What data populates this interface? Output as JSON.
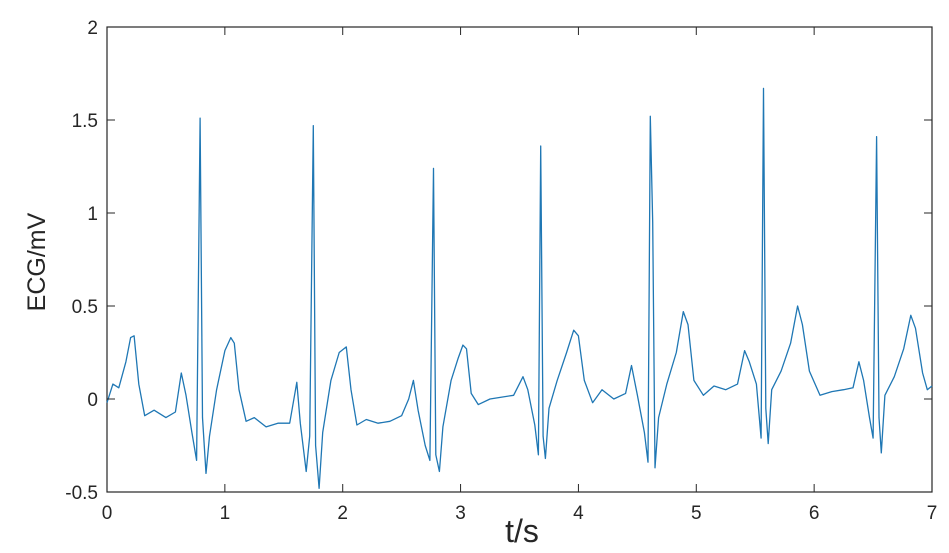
{
  "chart_data": {
    "type": "line",
    "title": "",
    "xlabel": "t/s",
    "ylabel": "ECG/mV",
    "xlim": [
      0,
      7
    ],
    "ylim": [
      -0.5,
      2
    ],
    "xticks": [
      0,
      1,
      2,
      3,
      4,
      5,
      6,
      7
    ],
    "yticks": [
      -0.5,
      0,
      0.5,
      1,
      1.5,
      2
    ],
    "xtick_labels": [
      "0",
      "1",
      "2",
      "3",
      "4",
      "5",
      "6",
      "7"
    ],
    "ytick_labels": [
      "-0.5",
      "0",
      "0.5",
      "1",
      "1.5",
      "2"
    ],
    "grid": false,
    "legend": "none",
    "colors": {
      "line": "#1f77b4",
      "axis": "#262626"
    },
    "beats": [
      {
        "r_time": 0.79,
        "r_peak": 1.51,
        "q_min": -0.33,
        "s_min": -0.4,
        "t_time": 1.08,
        "t_peak": 0.33,
        "p_time": 0.63,
        "p_peak": 0.14
      },
      {
        "r_time": 1.75,
        "r_peak": 1.47,
        "q_min": -0.39,
        "s_min": -0.48,
        "t_time": 2.03,
        "t_peak": 0.28,
        "p_time": 1.61,
        "p_peak": 0.09
      },
      {
        "r_time": 2.77,
        "r_peak": 1.24,
        "q_min": -0.33,
        "s_min": -0.39,
        "t_time": 3.05,
        "t_peak": 0.29,
        "p_time": 2.6,
        "p_peak": 0.1
      },
      {
        "r_time": 3.68,
        "r_peak": 1.36,
        "q_min": -0.3,
        "s_min": -0.32,
        "t_time": 3.96,
        "t_peak": 0.37,
        "p_time": 3.53,
        "p_peak": 0.15
      },
      {
        "r_time": 4.61,
        "r_peak": 1.52,
        "q_min": -0.34,
        "s_min": -0.37,
        "t_time": 4.89,
        "t_peak": 0.47,
        "p_time": 4.45,
        "p_peak": 0.2
      },
      {
        "r_time": 5.57,
        "r_peak": 1.67,
        "q_min": -0.21,
        "s_min": -0.24,
        "t_time": 5.86,
        "t_peak": 0.5,
        "p_time": 5.41,
        "p_peak": 0.26
      },
      {
        "r_time": 6.53,
        "r_peak": 1.41,
        "q_min": -0.21,
        "s_min": -0.29,
        "t_time": 6.82,
        "t_peak": 0.45,
        "p_time": 6.38,
        "p_peak": 0.2
      }
    ],
    "series": [
      {
        "x": [
          0,
          0.05,
          0.1,
          0.16,
          0.2,
          0.23,
          0.27,
          0.32,
          0.4,
          0.5,
          0.58,
          0.63,
          0.67,
          0.72,
          0.76,
          0.79,
          0.81,
          0.84,
          0.87,
          0.93,
          1.0,
          1.05,
          1.08,
          1.12,
          1.18,
          1.25,
          1.35,
          1.45,
          1.55,
          1.61,
          1.64,
          1.69,
          1.72,
          1.75,
          1.77,
          1.8,
          1.83,
          1.9,
          1.97,
          2.03,
          2.07,
          2.12,
          2.2,
          2.3,
          2.4,
          2.5,
          2.56,
          2.6,
          2.64,
          2.7,
          2.74,
          2.77,
          2.79,
          2.82,
          2.85,
          2.92,
          2.98,
          3.02,
          3.05,
          3.09,
          3.15,
          3.25,
          3.35,
          3.45,
          3.53,
          3.57,
          3.63,
          3.66,
          3.68,
          3.7,
          3.72,
          3.75,
          3.82,
          3.9,
          3.96,
          4.0,
          4.05,
          4.12,
          4.2,
          4.3,
          4.4,
          4.45,
          4.5,
          4.56,
          4.59,
          4.61,
          4.63,
          4.65,
          4.68,
          4.75,
          4.83,
          4.89,
          4.93,
          4.98,
          5.06,
          5.15,
          5.25,
          5.35,
          5.41,
          5.45,
          5.51,
          5.55,
          5.57,
          5.59,
          5.61,
          5.64,
          5.72,
          5.8,
          5.86,
          5.9,
          5.96,
          6.05,
          6.15,
          6.25,
          6.33,
          6.38,
          6.42,
          6.47,
          6.5,
          6.53,
          6.55,
          6.57,
          6.6,
          6.68,
          6.76,
          6.82,
          6.86,
          6.92,
          6.96,
          7.0
        ],
        "y": [
          -0.02,
          0.08,
          0.06,
          0.2,
          0.33,
          0.34,
          0.08,
          -0.09,
          -0.06,
          -0.1,
          -0.07,
          0.14,
          0.02,
          -0.18,
          -0.33,
          1.51,
          -0.1,
          -0.4,
          -0.2,
          0.05,
          0.26,
          0.33,
          0.3,
          0.05,
          -0.12,
          -0.1,
          -0.15,
          -0.13,
          -0.13,
          0.09,
          -0.13,
          -0.39,
          -0.2,
          1.47,
          -0.25,
          -0.48,
          -0.18,
          0.1,
          0.25,
          0.28,
          0.05,
          -0.14,
          -0.11,
          -0.13,
          -0.12,
          -0.09,
          0.0,
          0.1,
          -0.06,
          -0.25,
          -0.33,
          1.24,
          -0.3,
          -0.39,
          -0.15,
          0.1,
          0.22,
          0.29,
          0.27,
          0.03,
          -0.03,
          0.0,
          0.01,
          0.02,
          0.12,
          0.05,
          -0.14,
          -0.3,
          1.36,
          -0.2,
          -0.32,
          -0.05,
          0.1,
          0.25,
          0.37,
          0.34,
          0.1,
          -0.02,
          0.05,
          0.0,
          0.03,
          0.18,
          0.02,
          -0.18,
          -0.34,
          1.52,
          0.95,
          -0.37,
          -0.1,
          0.08,
          0.25,
          0.47,
          0.4,
          0.1,
          0.02,
          0.07,
          0.05,
          0.08,
          0.26,
          0.2,
          0.08,
          -0.21,
          1.67,
          -0.05,
          -0.24,
          0.05,
          0.15,
          0.3,
          0.5,
          0.4,
          0.15,
          0.02,
          0.04,
          0.05,
          0.06,
          0.2,
          0.1,
          -0.1,
          -0.21,
          1.41,
          -0.1,
          -0.29,
          0.02,
          0.12,
          0.27,
          0.45,
          0.38,
          0.14,
          0.05,
          0.07
        ]
      }
    ]
  }
}
